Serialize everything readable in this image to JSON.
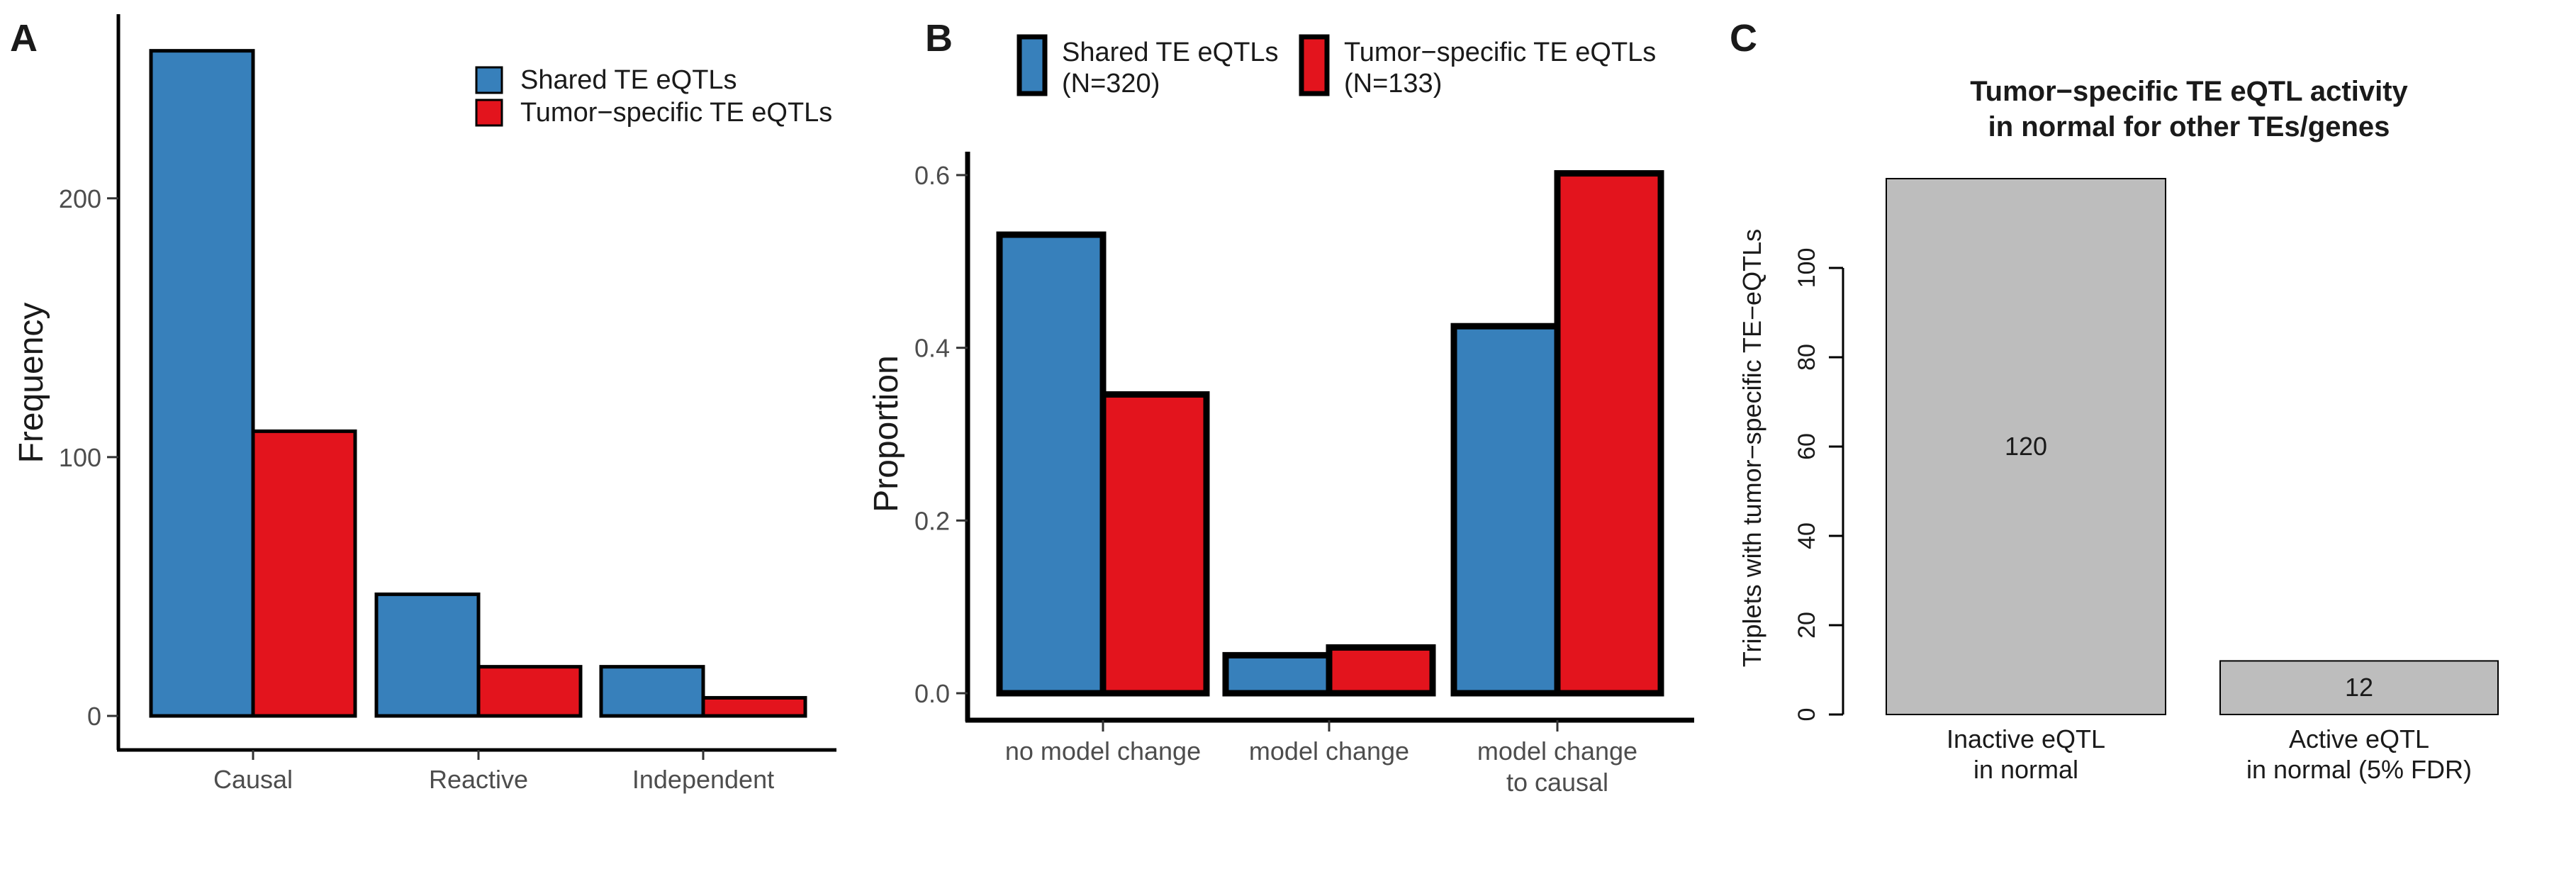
{
  "chart_data": [
    {
      "panel": "A",
      "type": "bar",
      "title": "",
      "xlabel": "",
      "ylabel": "Frequency",
      "ylim": [
        0,
        258
      ],
      "yticks": [
        0,
        100,
        200
      ],
      "categories": [
        "Causal",
        "Reactive",
        "Independent"
      ],
      "series": [
        {
          "name": "Shared TE eQTLs",
          "color": "#3780bb",
          "values": [
            257,
            47,
            19
          ]
        },
        {
          "name": "Tumor−specific TE eQTLs",
          "color": "#e3141d",
          "values": [
            110,
            19,
            7
          ]
        }
      ],
      "legend": {
        "position": "top-right"
      }
    },
    {
      "panel": "B",
      "type": "bar",
      "title": "",
      "xlabel": "",
      "ylabel": "Proportion",
      "ylim": [
        0,
        0.62
      ],
      "yticks": [
        "0.0",
        "0.2",
        "0.4",
        "0.6"
      ],
      "categories": [
        [
          "no model change"
        ],
        [
          "model change"
        ],
        [
          "model change",
          "to causal"
        ]
      ],
      "series": [
        {
          "name": "Shared TE eQTLs",
          "n_label": "(N=320)",
          "color": "#3780bb",
          "values": [
            0.531,
            0.044,
            0.425
          ]
        },
        {
          "name": "Tumor−specific TE eQTLs",
          "n_label": "(N=133)",
          "color": "#e3141d",
          "values": [
            0.346,
            0.053,
            0.602
          ]
        }
      ],
      "legend": {
        "position": "top"
      }
    },
    {
      "panel": "C",
      "type": "bar",
      "title": [
        "Tumor−specific TE eQTL activity",
        "in normal for other TEs/genes"
      ],
      "xlabel": "",
      "ylabel": "Triplets with tumor−specific TE−eQTLs",
      "ylim": [
        0,
        120
      ],
      "yticks": [
        0,
        20,
        40,
        60,
        80,
        100
      ],
      "categories": [
        [
          "Inactive eQTL",
          "in normal"
        ],
        [
          "Active eQTL",
          "in normal (5% FDR)"
        ]
      ],
      "values": [
        120,
        12
      ],
      "data_labels": [
        "120",
        "12"
      ],
      "color": "#bdbdbd"
    }
  ]
}
